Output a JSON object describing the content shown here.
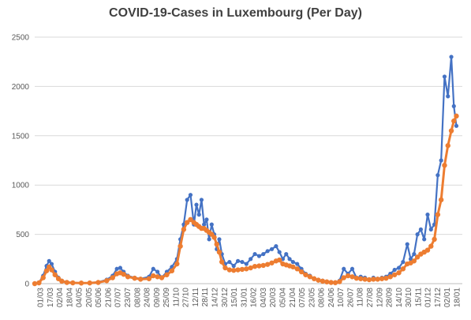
{
  "chart_data": {
    "type": "line",
    "title": "COVID-19-Cases in Luxembourg (Per Day)",
    "xlabel": "",
    "ylabel": "",
    "ylim": [
      0,
      2500
    ],
    "y_ticks": [
      0,
      500,
      1000,
      1500,
      2000,
      2500
    ],
    "grid": "horizontal",
    "legend": "none",
    "x_tick_labels": [
      "01/03",
      "17/03",
      "02/04",
      "18/04",
      "04/05",
      "20/05",
      "05/06",
      "21/06",
      "07/07",
      "23/07",
      "08/08",
      "24/08",
      "09/09",
      "25/09",
      "11/10",
      "27/10",
      "12/11",
      "28/11",
      "14/12",
      "30/12",
      "15/01",
      "31/01",
      "16/02",
      "04/03",
      "20/03",
      "05/04",
      "21/04",
      "07/05",
      "23/05",
      "08/06",
      "24/06",
      "10/07",
      "26/07",
      "11/08",
      "27/08",
      "12/09",
      "28/09",
      "14/10",
      "30/10",
      "15/11",
      "01/12",
      "17/12",
      "02/01",
      "18/01"
    ],
    "series": [
      {
        "color": "#4472C4",
        "values": [
          [
            0,
            0
          ],
          [
            5,
            10
          ],
          [
            10,
            80
          ],
          [
            14,
            180
          ],
          [
            17,
            230
          ],
          [
            20,
            200
          ],
          [
            24,
            120
          ],
          [
            28,
            60
          ],
          [
            32,
            30
          ],
          [
            38,
            15
          ],
          [
            45,
            10
          ],
          [
            55,
            5
          ],
          [
            65,
            8
          ],
          [
            75,
            15
          ],
          [
            85,
            40
          ],
          [
            92,
            80
          ],
          [
            97,
            150
          ],
          [
            101,
            160
          ],
          [
            105,
            120
          ],
          [
            110,
            80
          ],
          [
            118,
            60
          ],
          [
            125,
            50
          ],
          [
            135,
            70
          ],
          [
            140,
            150
          ],
          [
            145,
            120
          ],
          [
            150,
            60
          ],
          [
            156,
            120
          ],
          [
            162,
            170
          ],
          [
            168,
            250
          ],
          [
            172,
            450
          ],
          [
            176,
            600
          ],
          [
            180,
            850
          ],
          [
            184,
            900
          ],
          [
            188,
            600
          ],
          [
            191,
            800
          ],
          [
            194,
            700
          ],
          [
            197,
            850
          ],
          [
            200,
            600
          ],
          [
            203,
            650
          ],
          [
            206,
            450
          ],
          [
            209,
            600
          ],
          [
            212,
            500
          ],
          [
            215,
            350
          ],
          [
            218,
            450
          ],
          [
            221,
            300
          ],
          [
            225,
            200
          ],
          [
            230,
            220
          ],
          [
            235,
            180
          ],
          [
            240,
            230
          ],
          [
            245,
            220
          ],
          [
            250,
            200
          ],
          [
            255,
            250
          ],
          [
            260,
            300
          ],
          [
            265,
            280
          ],
          [
            270,
            300
          ],
          [
            275,
            330
          ],
          [
            280,
            350
          ],
          [
            285,
            380
          ],
          [
            289,
            320
          ],
          [
            293,
            250
          ],
          [
            297,
            300
          ],
          [
            301,
            250
          ],
          [
            305,
            220
          ],
          [
            310,
            200
          ],
          [
            315,
            150
          ],
          [
            320,
            100
          ],
          [
            325,
            80
          ],
          [
            330,
            50
          ],
          [
            335,
            40
          ],
          [
            340,
            30
          ],
          [
            345,
            20
          ],
          [
            350,
            15
          ],
          [
            355,
            10
          ],
          [
            360,
            30
          ],
          [
            365,
            150
          ],
          [
            370,
            100
          ],
          [
            375,
            150
          ],
          [
            380,
            60
          ],
          [
            385,
            70
          ],
          [
            390,
            60
          ],
          [
            395,
            40
          ],
          [
            400,
            60
          ],
          [
            405,
            50
          ],
          [
            410,
            60
          ],
          [
            415,
            70
          ],
          [
            420,
            100
          ],
          [
            425,
            140
          ],
          [
            430,
            160
          ],
          [
            435,
            220
          ],
          [
            440,
            400
          ],
          [
            444,
            250
          ],
          [
            448,
            300
          ],
          [
            452,
            500
          ],
          [
            456,
            550
          ],
          [
            460,
            450
          ],
          [
            464,
            700
          ],
          [
            468,
            550
          ],
          [
            472,
            600
          ],
          [
            476,
            1100
          ],
          [
            480,
            1250
          ],
          [
            484,
            2100
          ],
          [
            488,
            1900
          ],
          [
            492,
            2300
          ],
          [
            495,
            1800
          ],
          [
            498,
            1600
          ]
        ]
      },
      {
        "color": "#ED7D31",
        "values": [
          [
            0,
            0
          ],
          [
            5,
            8
          ],
          [
            10,
            60
          ],
          [
            14,
            130
          ],
          [
            17,
            170
          ],
          [
            20,
            140
          ],
          [
            24,
            90
          ],
          [
            28,
            50
          ],
          [
            32,
            25
          ],
          [
            38,
            12
          ],
          [
            45,
            8
          ],
          [
            55,
            6
          ],
          [
            65,
            7
          ],
          [
            75,
            12
          ],
          [
            85,
            30
          ],
          [
            92,
            60
          ],
          [
            97,
            100
          ],
          [
            101,
            110
          ],
          [
            105,
            95
          ],
          [
            110,
            70
          ],
          [
            118,
            55
          ],
          [
            125,
            45
          ],
          [
            135,
            50
          ],
          [
            140,
            80
          ],
          [
            145,
            70
          ],
          [
            150,
            60
          ],
          [
            156,
            90
          ],
          [
            162,
            130
          ],
          [
            168,
            200
          ],
          [
            172,
            380
          ],
          [
            176,
            550
          ],
          [
            180,
            620
          ],
          [
            184,
            650
          ],
          [
            188,
            620
          ],
          [
            191,
            600
          ],
          [
            194,
            580
          ],
          [
            197,
            560
          ],
          [
            200,
            560
          ],
          [
            203,
            540
          ],
          [
            206,
            520
          ],
          [
            209,
            500
          ],
          [
            212,
            470
          ],
          [
            215,
            400
          ],
          [
            218,
            320
          ],
          [
            221,
            220
          ],
          [
            225,
            160
          ],
          [
            230,
            140
          ],
          [
            235,
            135
          ],
          [
            240,
            140
          ],
          [
            245,
            145
          ],
          [
            250,
            150
          ],
          [
            255,
            160
          ],
          [
            260,
            175
          ],
          [
            265,
            180
          ],
          [
            270,
            185
          ],
          [
            275,
            195
          ],
          [
            280,
            210
          ],
          [
            285,
            230
          ],
          [
            289,
            240
          ],
          [
            293,
            200
          ],
          [
            297,
            190
          ],
          [
            301,
            180
          ],
          [
            305,
            170
          ],
          [
            310,
            150
          ],
          [
            315,
            120
          ],
          [
            320,
            90
          ],
          [
            325,
            70
          ],
          [
            330,
            50
          ],
          [
            335,
            35
          ],
          [
            340,
            25
          ],
          [
            345,
            18
          ],
          [
            350,
            12
          ],
          [
            355,
            10
          ],
          [
            360,
            20
          ],
          [
            365,
            60
          ],
          [
            370,
            80
          ],
          [
            375,
            70
          ],
          [
            380,
            55
          ],
          [
            385,
            50
          ],
          [
            390,
            45
          ],
          [
            395,
            40
          ],
          [
            400,
            45
          ],
          [
            405,
            45
          ],
          [
            410,
            50
          ],
          [
            415,
            55
          ],
          [
            420,
            70
          ],
          [
            425,
            90
          ],
          [
            430,
            110
          ],
          [
            435,
            150
          ],
          [
            440,
            200
          ],
          [
            444,
            210
          ],
          [
            448,
            230
          ],
          [
            452,
            270
          ],
          [
            456,
            300
          ],
          [
            460,
            320
          ],
          [
            464,
            340
          ],
          [
            468,
            380
          ],
          [
            472,
            450
          ],
          [
            476,
            700
          ],
          [
            480,
            850
          ],
          [
            484,
            1200
          ],
          [
            488,
            1400
          ],
          [
            492,
            1550
          ],
          [
            495,
            1650
          ],
          [
            498,
            1700
          ]
        ]
      }
    ]
  }
}
